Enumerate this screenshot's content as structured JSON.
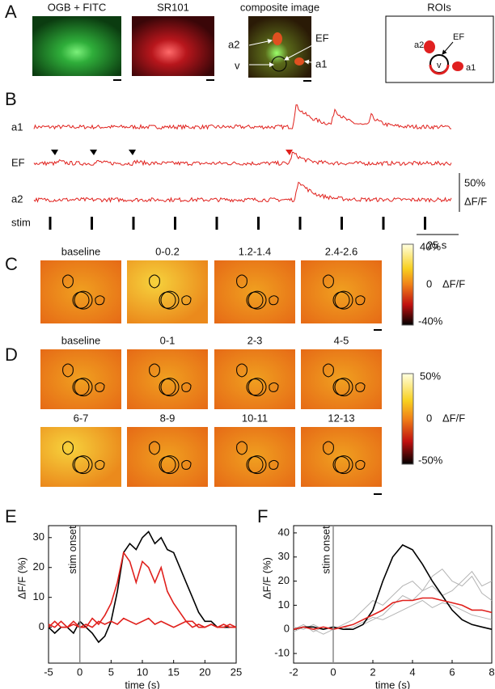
{
  "panel_letters": [
    "A",
    "B",
    "C",
    "D",
    "E",
    "F"
  ],
  "panel_a": {
    "image_titles": [
      "OGB + FITC",
      "SR101",
      "composite image",
      "ROIs"
    ],
    "composite_labels": [
      "a2",
      "EF",
      "v",
      "a1"
    ],
    "roi_labels": [
      "a2",
      "EF",
      "v",
      "a1"
    ]
  },
  "panel_b": {
    "trace_labels": [
      "a1",
      "EF",
      "a2",
      "stim"
    ],
    "scale_y": "50%",
    "scale_y_unit": "ΔF/F",
    "scale_x": "25 s"
  },
  "panel_c": {
    "frame_labels": [
      "baseline",
      "0-0.2",
      "1.2-1.4",
      "2.4-2.6"
    ],
    "colorbar_labels": [
      "40%",
      "0",
      "-40%"
    ],
    "colorbar_unit": "ΔF/F"
  },
  "panel_d": {
    "frame_labels": [
      "baseline",
      "0-1",
      "2-3",
      "4-5",
      "6-7",
      "8-9",
      "10-11",
      "12-13"
    ],
    "colorbar_labels": [
      "50%",
      "0",
      "-50%"
    ],
    "colorbar_unit": "ΔF/F"
  },
  "chart_data": [
    {
      "type": "line",
      "xlabel": "time (s)",
      "ylabel": "ΔF/F (%)",
      "annotation": {
        "text": "stim onset",
        "x": 0
      },
      "xlim": [
        -5,
        25
      ],
      "ylim": [
        -12,
        34
      ],
      "xticks": [
        -5,
        0,
        5,
        10,
        15,
        20,
        25
      ],
      "yticks": [
        0,
        10,
        20,
        30
      ],
      "x": [
        -5,
        -4,
        -3,
        -2,
        -1,
        0,
        1,
        2,
        3,
        4,
        5,
        6,
        7,
        8,
        9,
        10,
        11,
        12,
        13,
        14,
        15,
        16,
        17,
        18,
        19,
        20,
        21,
        22,
        23,
        24,
        25
      ],
      "series": [
        {
          "color": "#000000",
          "values": [
            0,
            -2,
            0,
            0,
            -2,
            2,
            0,
            -2,
            -5,
            -3,
            2,
            12,
            25,
            28,
            26,
            30,
            32,
            28,
            30,
            26,
            25,
            20,
            15,
            10,
            5,
            2,
            2,
            0,
            0,
            0,
            0
          ]
        },
        {
          "color": "#e0201c",
          "values": [
            0,
            2,
            0,
            0,
            2,
            0,
            0,
            3,
            1,
            4,
            8,
            15,
            25,
            22,
            15,
            22,
            20,
            15,
            20,
            12,
            8,
            5,
            2,
            2,
            0,
            0,
            1,
            0,
            0,
            1,
            0
          ]
        },
        {
          "color": "#e0201c",
          "values": [
            1,
            0,
            2,
            0,
            1,
            0,
            1,
            0,
            2,
            1,
            2,
            1,
            3,
            2,
            1,
            2,
            3,
            1,
            2,
            1,
            0,
            1,
            2,
            0,
            1,
            0,
            1,
            0,
            1,
            0,
            0
          ]
        }
      ]
    },
    {
      "type": "line",
      "xlabel": "time (s)",
      "ylabel": "ΔF/F (%)",
      "annotation": {
        "text": "stim onset",
        "x": 0
      },
      "xlim": [
        -2,
        8
      ],
      "ylim": [
        -14,
        43
      ],
      "xticks": [
        -2,
        0,
        2,
        4,
        6,
        8
      ],
      "yticks": [
        -10,
        0,
        10,
        20,
        30,
        40
      ],
      "x": [
        -2,
        -1.5,
        -1,
        -0.5,
        0,
        0.5,
        1,
        1.5,
        2,
        2.5,
        3,
        3.5,
        4,
        4.5,
        5,
        5.5,
        6,
        6.5,
        7,
        7.5,
        8
      ],
      "series": [
        {
          "color": "#b4b4b4",
          "values": [
            0,
            2,
            -1,
            1,
            0,
            2,
            4,
            8,
            12,
            10,
            14,
            18,
            20,
            16,
            22,
            25,
            20,
            18,
            22,
            15,
            12
          ]
        },
        {
          "color": "#b4b4b4",
          "values": [
            1,
            0,
            2,
            0,
            1,
            0,
            1,
            3,
            5,
            4,
            6,
            8,
            10,
            12,
            9,
            11,
            10,
            8,
            6,
            5,
            4
          ]
        },
        {
          "color": "#b4b4b4",
          "values": [
            -1,
            1,
            0,
            -2,
            0,
            1,
            0,
            2,
            4,
            6,
            10,
            14,
            12,
            16,
            18,
            14,
            16,
            20,
            24,
            18,
            20
          ]
        },
        {
          "color": "#000000",
          "values": [
            0,
            1,
            1,
            0,
            1,
            0,
            0,
            2,
            8,
            20,
            30,
            35,
            33,
            27,
            20,
            14,
            8,
            4,
            2,
            1,
            0
          ]
        },
        {
          "color": "#e0201c",
          "values": [
            0,
            1,
            0,
            1,
            0,
            1,
            2,
            4,
            6,
            8,
            11,
            12,
            12,
            13,
            13,
            12,
            11,
            10,
            8,
            8,
            7
          ]
        }
      ]
    }
  ]
}
